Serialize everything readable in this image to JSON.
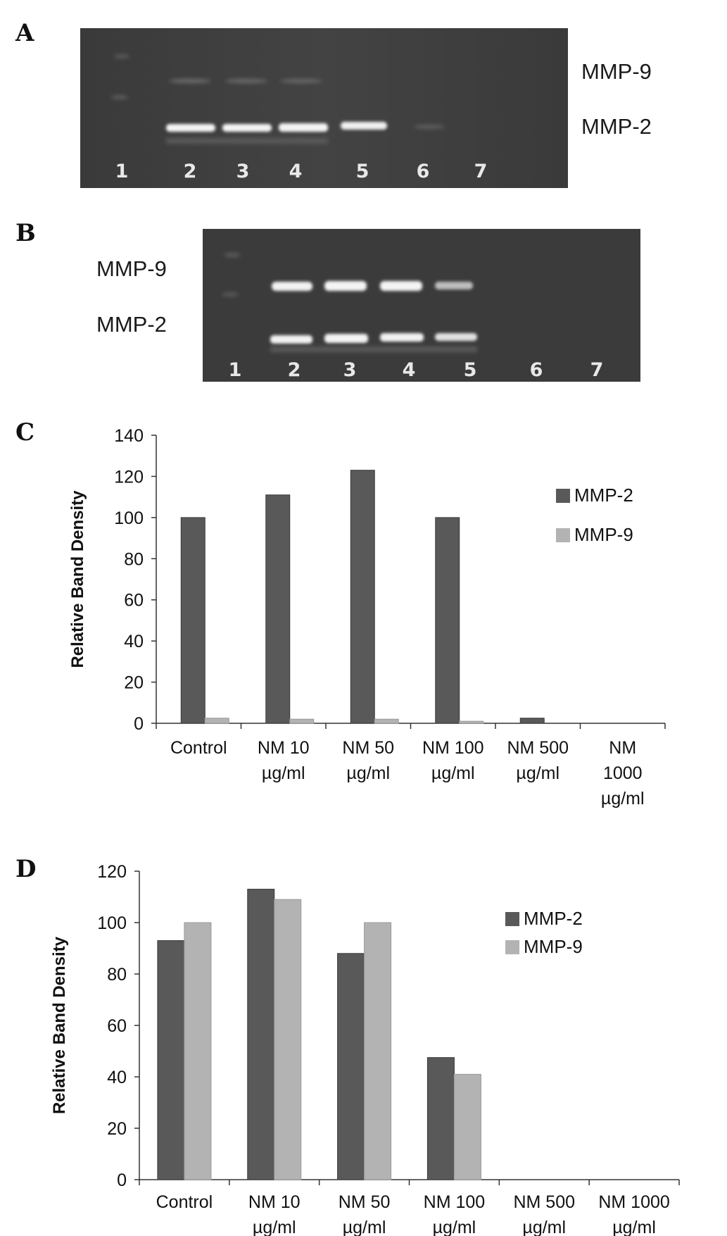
{
  "panels": {
    "a": {
      "letter": "A",
      "labels": [
        "MMP-9",
        "MMP-2"
      ],
      "lanes": [
        "1",
        "2",
        "3",
        "4",
        "5",
        "6",
        "7"
      ]
    },
    "b": {
      "letter": "B",
      "labels": [
        "MMP-9",
        "MMP-2"
      ],
      "lanes": [
        "1",
        "2",
        "3",
        "4",
        "5",
        "6",
        "7"
      ]
    },
    "c": {
      "letter": "C"
    },
    "d": {
      "letter": "D"
    }
  },
  "colors": {
    "mmp2": "#595959",
    "mmp9": "#b3b3b3",
    "gel_bg": "#3c3c3c"
  },
  "chart_data": [
    {
      "type": "bar",
      "panel": "C",
      "categories": [
        [
          "Control"
        ],
        [
          "NM 10",
          "µg/ml"
        ],
        [
          "NM 50",
          "µg/ml"
        ],
        [
          "NM 100",
          "µg/ml"
        ],
        [
          "NM 500",
          "µg/ml"
        ],
        [
          "NM",
          "1000",
          "µg/ml"
        ]
      ],
      "series": [
        {
          "name": "MMP-2",
          "values": [
            100,
            111,
            123,
            100,
            2.5,
            0
          ]
        },
        {
          "name": "MMP-9",
          "values": [
            2.5,
            2,
            2,
            1,
            0,
            0
          ]
        }
      ],
      "ylabel": "Relative Band Density",
      "ylim": [
        0,
        140
      ],
      "yticks": [
        0,
        20,
        40,
        60,
        80,
        100,
        120,
        140
      ],
      "legend": "right"
    },
    {
      "type": "bar",
      "panel": "D",
      "categories": [
        [
          "Control"
        ],
        [
          "NM 10",
          "µg/ml"
        ],
        [
          "NM 50",
          "µg/ml"
        ],
        [
          "NM 100",
          "µg/ml"
        ],
        [
          "NM 500",
          "µg/ml"
        ],
        [
          "NM 1000",
          "µg/ml"
        ]
      ],
      "series": [
        {
          "name": "MMP-2",
          "values": [
            93,
            113,
            88,
            47.5,
            0,
            0
          ]
        },
        {
          "name": "MMP-9",
          "values": [
            100,
            109,
            100,
            41,
            0,
            0
          ]
        }
      ],
      "ylabel": "Relative Band Density",
      "ylim": [
        0,
        120
      ],
      "yticks": [
        0,
        20,
        40,
        60,
        80,
        100,
        120
      ],
      "legend": "right"
    }
  ]
}
